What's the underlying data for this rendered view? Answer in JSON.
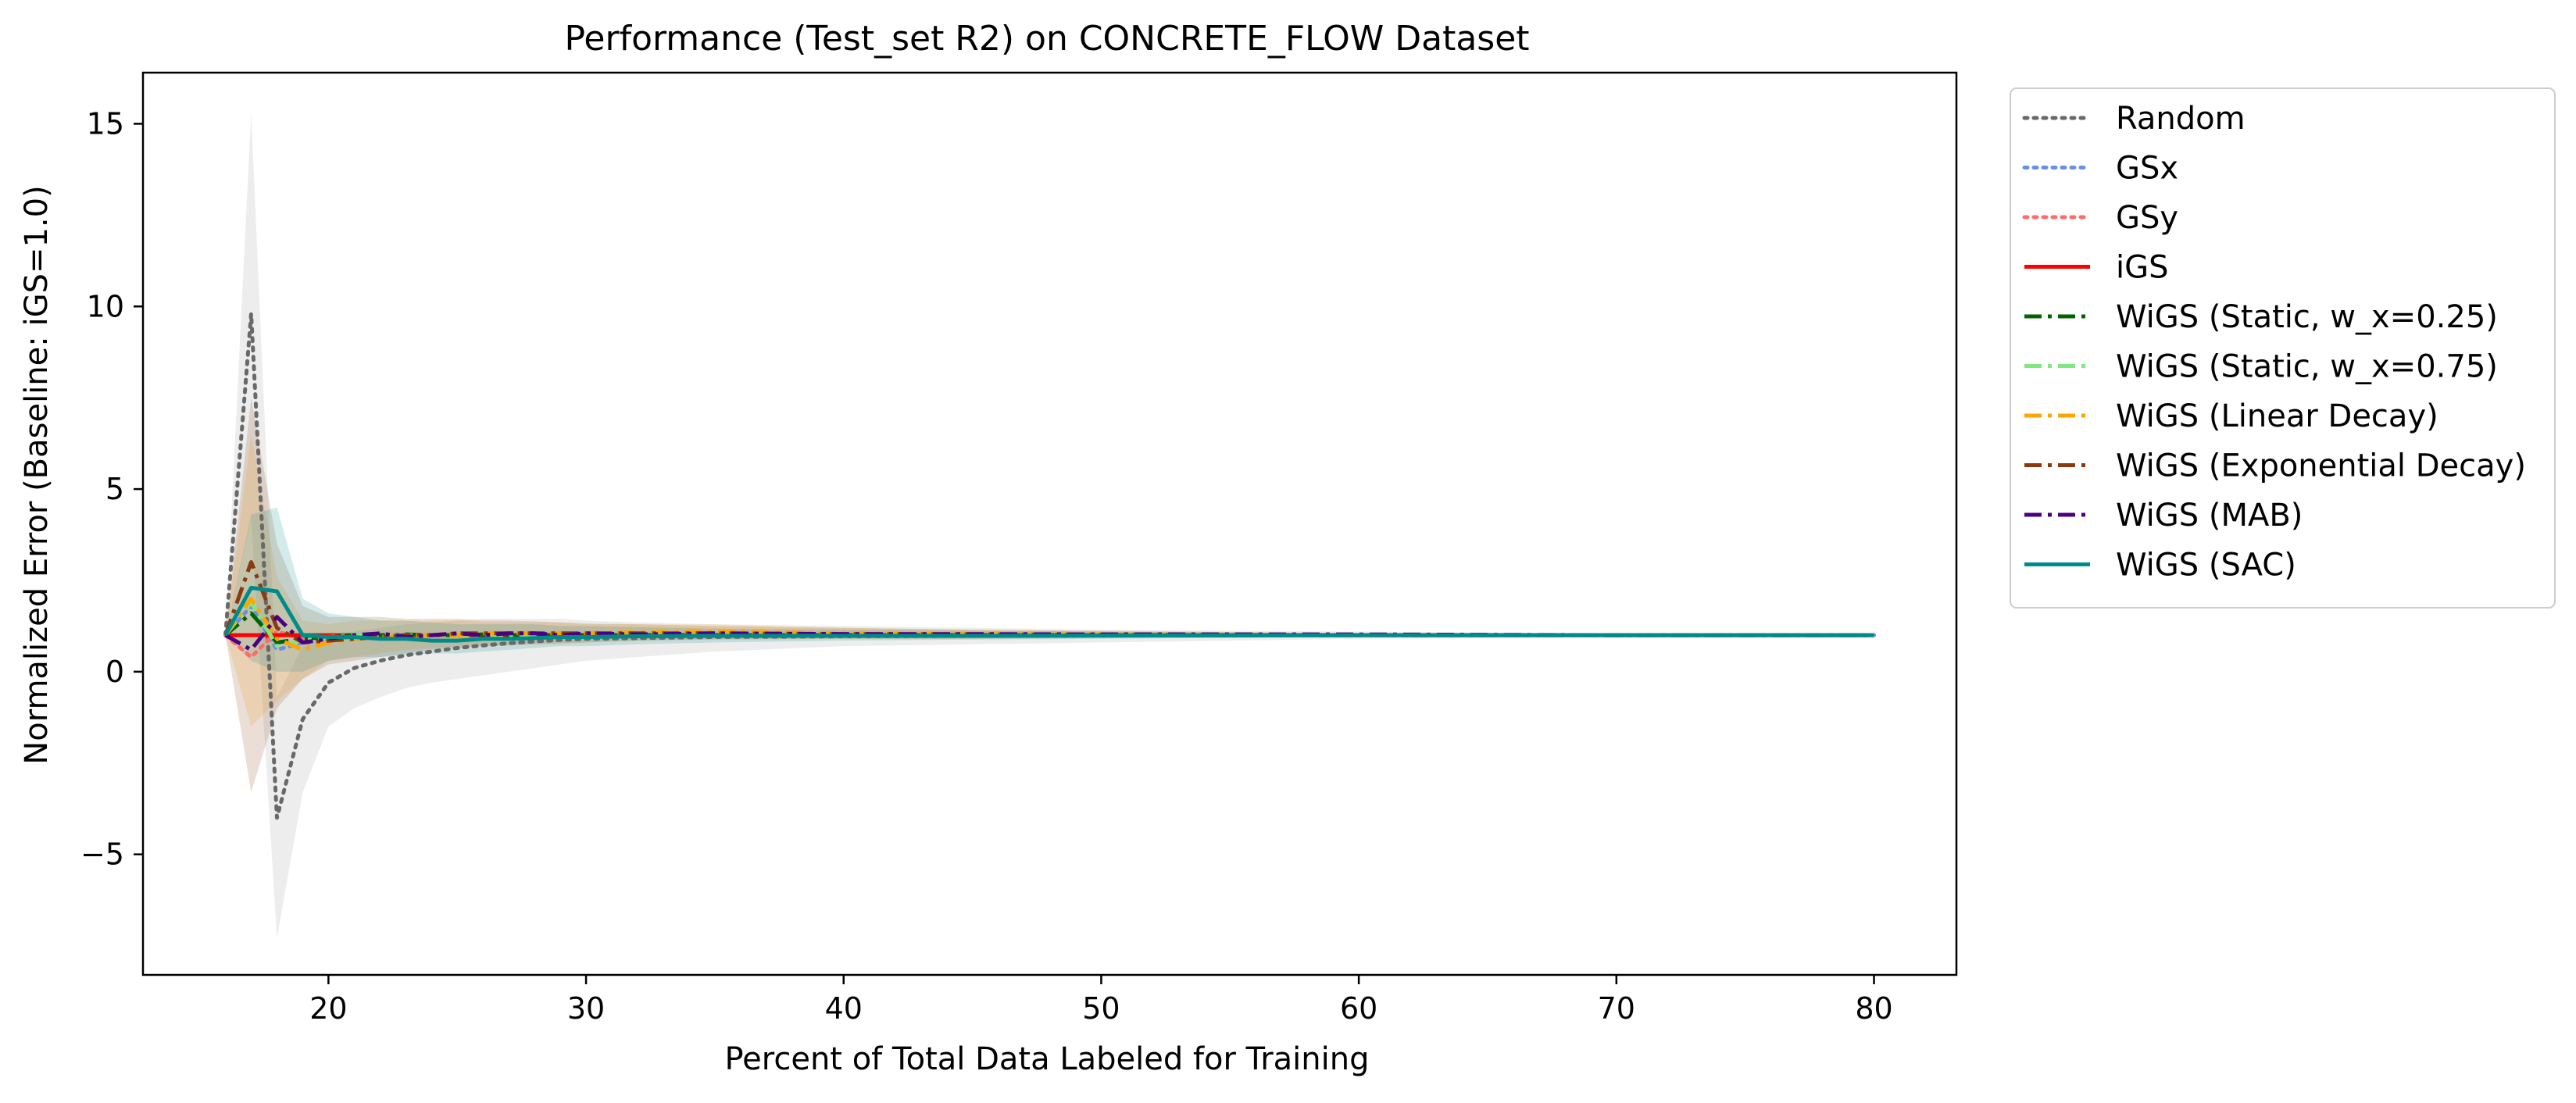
{
  "chart_data": {
    "type": "line",
    "title": "Performance (Test_set R2) on CONCRETE_FLOW Dataset",
    "xlabel": "Percent of Total Data Labeled for Training",
    "ylabel": "Normalized Error (Baseline: iGS=1.0)",
    "xlim": [
      12.8,
      83.2
    ],
    "ylim": [
      -8.3,
      16.4
    ],
    "xticks": [
      20,
      30,
      40,
      50,
      60,
      70,
      80
    ],
    "xtick_labels": [
      "20",
      "30",
      "40",
      "50",
      "60",
      "70",
      "80"
    ],
    "yticks": [
      -5,
      0,
      5,
      10,
      15
    ],
    "ytick_labels": [
      "−5",
      "0",
      "5",
      "10",
      "15"
    ],
    "grid": false,
    "legend_position": "outside-right",
    "x": [
      16,
      17,
      18,
      19,
      20,
      21,
      22,
      23,
      24,
      25,
      26,
      27,
      28,
      29,
      30,
      32,
      35,
      40,
      45,
      50,
      60,
      70,
      80
    ],
    "series": [
      {
        "name": "Random",
        "color": "#696969",
        "dash": "dotted",
        "lw": 5,
        "values": [
          1.0,
          9.8,
          -4.0,
          -1.3,
          -0.3,
          0.1,
          0.3,
          0.45,
          0.55,
          0.65,
          0.72,
          0.78,
          0.83,
          0.87,
          0.9,
          0.92,
          0.95,
          0.97,
          0.98,
          0.99,
          1.0,
          1.0,
          1.0
        ],
        "band": [
          [
            1.0,
            1.0
          ],
          [
            4.2,
            15.3
          ],
          [
            -7.3,
            -0.7
          ],
          [
            -3.3,
            0.7
          ],
          [
            -1.5,
            1.0
          ],
          [
            -1.0,
            1.1
          ],
          [
            -0.7,
            1.2
          ],
          [
            -0.45,
            1.3
          ],
          [
            -0.3,
            1.35
          ],
          [
            -0.2,
            1.4
          ],
          [
            -0.1,
            1.45
          ],
          [
            0.0,
            1.45
          ],
          [
            0.1,
            1.45
          ],
          [
            0.2,
            1.45
          ],
          [
            0.3,
            1.4
          ],
          [
            0.4,
            1.35
          ],
          [
            0.55,
            1.3
          ],
          [
            0.7,
            1.25
          ],
          [
            0.75,
            1.2
          ],
          [
            0.8,
            1.15
          ],
          [
            0.9,
            1.1
          ],
          [
            0.95,
            1.05
          ],
          [
            0.95,
            1.05
          ]
        ]
      },
      {
        "name": "GSx",
        "color": "#6b8ee6",
        "dash": "dotted",
        "lw": 5,
        "values": [
          1.0,
          1.8,
          0.6,
          0.8,
          0.9,
          0.95,
          1.0,
          1.0,
          1.0,
          1.0,
          1.0,
          1.0,
          1.0,
          1.0,
          1.0,
          1.0,
          1.0,
          1.0,
          1.0,
          1.0,
          1.0,
          1.0,
          1.0
        ]
      },
      {
        "name": "GSy",
        "color": "#ff6b6b",
        "dash": "dotted",
        "lw": 5,
        "values": [
          1.0,
          0.4,
          1.1,
          0.9,
          0.95,
          1.0,
          1.0,
          1.0,
          1.0,
          1.0,
          1.0,
          1.0,
          1.0,
          1.0,
          1.0,
          1.0,
          1.0,
          1.0,
          1.0,
          1.0,
          1.0,
          1.0,
          1.0
        ]
      },
      {
        "name": "iGS",
        "color": "#ff0000",
        "dash": "solid",
        "lw": 5,
        "values": [
          1.0,
          1.0,
          1.0,
          1.0,
          1.0,
          1.0,
          1.0,
          1.0,
          1.0,
          1.0,
          1.0,
          1.0,
          1.0,
          1.0,
          1.0,
          1.0,
          1.0,
          1.0,
          1.0,
          1.0,
          1.0,
          1.0,
          1.0
        ]
      },
      {
        "name": "WiGS (Static, w_x=0.25)",
        "color": "#006400",
        "dash": "dashdot",
        "lw": 5,
        "values": [
          1.0,
          1.6,
          0.8,
          0.9,
          0.95,
          1.0,
          1.0,
          1.02,
          1.0,
          1.0,
          1.02,
          1.0,
          1.0,
          1.0,
          1.0,
          1.0,
          1.0,
          1.0,
          1.0,
          1.0,
          1.0,
          1.0,
          1.0
        ]
      },
      {
        "name": "WiGS (Static, w_x=0.75)",
        "color": "#7fe87f",
        "dash": "dashdot",
        "lw": 5,
        "values": [
          1.0,
          1.9,
          0.7,
          0.85,
          0.95,
          1.0,
          1.0,
          1.0,
          1.0,
          1.0,
          1.0,
          1.0,
          1.0,
          1.0,
          1.0,
          1.0,
          1.0,
          1.0,
          1.0,
          1.0,
          1.0,
          1.0,
          1.0
        ]
      },
      {
        "name": "WiGS (Linear Decay)",
        "color": "#ffa500",
        "dash": "dashdot",
        "lw": 5,
        "values": [
          1.0,
          2.0,
          0.9,
          0.6,
          0.8,
          0.9,
          0.95,
          1.0,
          1.0,
          1.0,
          1.05,
          1.05,
          1.05,
          1.05,
          1.05,
          1.08,
          1.1,
          1.05,
          1.03,
          1.02,
          1.0,
          1.0,
          1.0
        ],
        "band": [
          [
            1.0,
            1.0
          ],
          [
            -1.5,
            6.5
          ],
          [
            -0.8,
            2.6
          ],
          [
            -0.2,
            1.4
          ],
          [
            0.3,
            1.3
          ],
          [
            0.4,
            1.4
          ],
          [
            0.5,
            1.4
          ],
          [
            0.6,
            1.4
          ],
          [
            0.65,
            1.4
          ],
          [
            0.7,
            1.4
          ],
          [
            0.75,
            1.35
          ],
          [
            0.75,
            1.35
          ],
          [
            0.75,
            1.35
          ],
          [
            0.75,
            1.35
          ],
          [
            0.8,
            1.3
          ],
          [
            0.85,
            1.3
          ],
          [
            0.9,
            1.3
          ],
          [
            0.9,
            1.2
          ],
          [
            0.9,
            1.15
          ],
          [
            0.95,
            1.1
          ],
          [
            0.95,
            1.05
          ],
          [
            0.95,
            1.05
          ],
          [
            0.95,
            1.05
          ]
        ]
      },
      {
        "name": "WiGS (Exponential Decay)",
        "color": "#8b3a0f",
        "dash": "dashdot",
        "lw": 5,
        "values": [
          1.0,
          3.0,
          1.2,
          0.8,
          0.85,
          0.9,
          0.95,
          1.0,
          1.0,
          1.05,
          1.05,
          1.05,
          1.05,
          1.05,
          1.05,
          1.05,
          1.05,
          1.03,
          1.02,
          1.01,
          1.0,
          1.0,
          1.0
        ],
        "band": [
          [
            1.0,
            1.0
          ],
          [
            -3.3,
            7.5
          ],
          [
            -1.0,
            3.5
          ],
          [
            -0.2,
            1.8
          ],
          [
            0.2,
            1.5
          ],
          [
            0.3,
            1.5
          ],
          [
            0.4,
            1.5
          ],
          [
            0.5,
            1.45
          ],
          [
            0.6,
            1.45
          ],
          [
            0.65,
            1.45
          ],
          [
            0.7,
            1.4
          ],
          [
            0.72,
            1.4
          ],
          [
            0.75,
            1.38
          ],
          [
            0.78,
            1.35
          ],
          [
            0.8,
            1.32
          ],
          [
            0.85,
            1.3
          ],
          [
            0.88,
            1.25
          ],
          [
            0.9,
            1.2
          ],
          [
            0.9,
            1.15
          ],
          [
            0.92,
            1.12
          ],
          [
            0.95,
            1.06
          ],
          [
            0.95,
            1.05
          ],
          [
            0.95,
            1.05
          ]
        ]
      },
      {
        "name": "WiGS (MAB)",
        "color": "#4b0082",
        "dash": "dashdot",
        "lw": 5,
        "values": [
          1.0,
          0.6,
          1.5,
          0.8,
          0.9,
          1.0,
          1.05,
          0.95,
          1.0,
          1.05,
          1.0,
          1.05,
          1.05,
          1.0,
          1.05,
          1.02,
          1.05,
          1.03,
          1.03,
          1.02,
          1.02,
          1.0,
          1.0
        ]
      },
      {
        "name": "WiGS (SAC)",
        "color": "#008b8b",
        "dash": "solid",
        "lw": 5,
        "values": [
          1.0,
          2.3,
          2.2,
          1.0,
          0.95,
          0.95,
          0.9,
          0.9,
          0.85,
          0.85,
          0.9,
          0.9,
          0.92,
          0.95,
          0.95,
          0.97,
          0.98,
          0.98,
          0.98,
          0.99,
          1.0,
          1.0,
          1.0
        ],
        "band": [
          [
            1.0,
            1.0
          ],
          [
            0.3,
            4.3
          ],
          [
            0.0,
            4.5
          ],
          [
            0.0,
            2.0
          ],
          [
            0.3,
            1.6
          ],
          [
            0.4,
            1.5
          ],
          [
            0.4,
            1.4
          ],
          [
            0.45,
            1.4
          ],
          [
            0.5,
            1.35
          ],
          [
            0.5,
            1.3
          ],
          [
            0.55,
            1.3
          ],
          [
            0.6,
            1.3
          ],
          [
            0.65,
            1.3
          ],
          [
            0.7,
            1.25
          ],
          [
            0.7,
            1.25
          ],
          [
            0.75,
            1.22
          ],
          [
            0.8,
            1.18
          ],
          [
            0.85,
            1.15
          ],
          [
            0.88,
            1.12
          ],
          [
            0.9,
            1.1
          ],
          [
            0.95,
            1.05
          ],
          [
            0.95,
            1.05
          ],
          [
            0.95,
            1.05
          ]
        ]
      }
    ]
  }
}
